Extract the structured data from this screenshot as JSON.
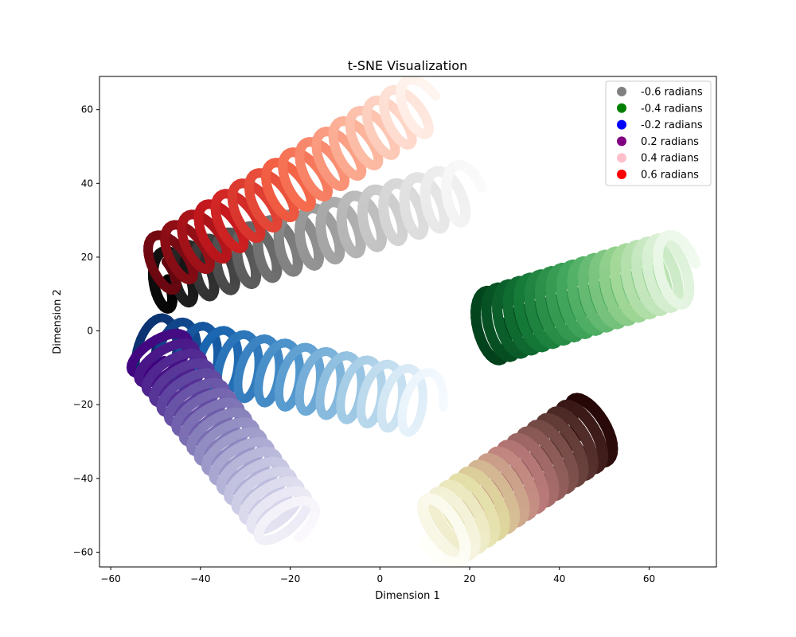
{
  "chart_data": {
    "type": "scatter",
    "title": "t-SNE Visualization",
    "xlabel": "Dimension 1",
    "ylabel": "Dimension 2",
    "xlim": [
      -62.5,
      75
    ],
    "ylim": [
      -64,
      69
    ],
    "xticks": [
      -60,
      -40,
      -20,
      0,
      20,
      40,
      60
    ],
    "yticks": [
      -60,
      -40,
      -20,
      0,
      20,
      40,
      60
    ],
    "xtick_labels": [
      "−60",
      "−40",
      "−20",
      "0",
      "20",
      "40",
      "60"
    ],
    "ytick_labels": [
      "−60",
      "−40",
      "−20",
      "0",
      "20",
      "40",
      "60"
    ],
    "grid": false,
    "legend_position": "top-right",
    "legend": [
      {
        "label": "-0.6 radians",
        "color": "#808080"
      },
      {
        "label": "-0.4 radians",
        "color": "#008000"
      },
      {
        "label": "-0.2 radians",
        "color": "#0000ff"
      },
      {
        "label": "0.2 radians",
        "color": "#800080"
      },
      {
        "label": "0.4 radians",
        "color": "#ffc0cb"
      },
      {
        "label": "0.6 radians",
        "color": "#ff0000"
      }
    ],
    "series": [
      {
        "colormap": "Greys",
        "start": [
          -50,
          13
        ],
        "end": [
          20,
          38
        ],
        "amplitude": 4.0,
        "loops": 15,
        "width": 13
      },
      {
        "colormap": "Greens",
        "start": [
          24,
          1
        ],
        "end": [
          67,
          17
        ],
        "amplitude": 5.0,
        "loops": 18,
        "width": 13
      },
      {
        "colormap": "Blues",
        "start": [
          -53,
          -4
        ],
        "end": [
          11,
          -20
        ],
        "amplitude": 4.5,
        "loops": 14,
        "width": 11
      },
      {
        "colormap": "Purples",
        "start": [
          -50,
          -5
        ],
        "end": [
          -20,
          -53
        ],
        "amplitude": 4.5,
        "loops": 18,
        "width": 12
      },
      {
        "colormap": "pink_r",
        "start": [
          48,
          -26
        ],
        "end": [
          13,
          -55
        ],
        "amplitude": 5.0,
        "loops": 16,
        "width": 14
      },
      {
        "colormap": "Reds",
        "start": [
          -50,
          17
        ],
        "end": [
          10,
          62
        ],
        "amplitude": 4.0,
        "loops": 16,
        "width": 12
      }
    ]
  }
}
